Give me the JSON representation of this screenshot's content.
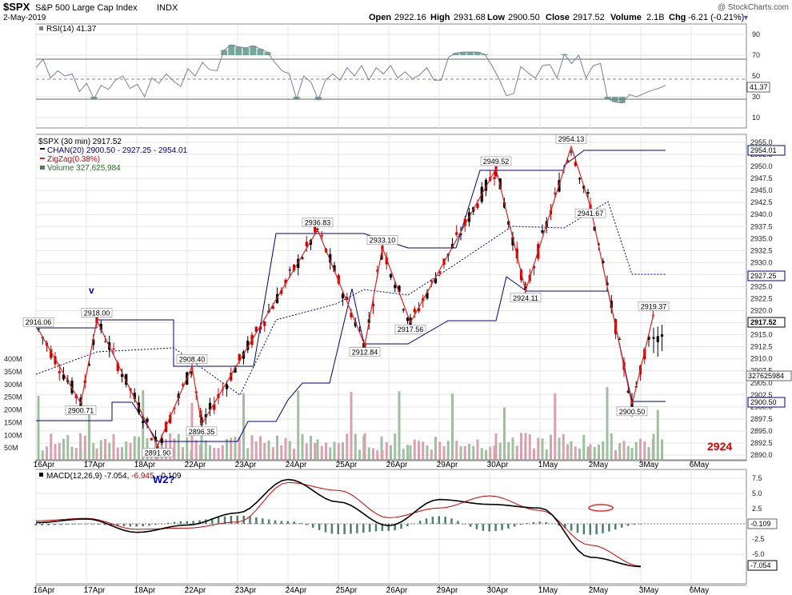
{
  "header": {
    "symbol": "$SPX",
    "name": "S&P 500 Large Cap Index",
    "exchange": "INDX",
    "date": "2-May-2019",
    "watermark": "@ StockCharts.com",
    "open_label": "Open",
    "open": "2922.16",
    "high_label": "High",
    "high": "2931.68",
    "low_label": "Low",
    "low": "2900.50",
    "close_label": "Close",
    "close": "2917.52",
    "volume_label": "Volume",
    "volume": "2.1B",
    "chg_label": "Chg",
    "chg": "-6.21 (-0.21%)"
  },
  "colors": {
    "up": "#000000",
    "down": "#cc0000",
    "channel": "#000080",
    "zigzag": "#dd2222",
    "rsi": "#7a7f9a",
    "rsi_fill": "#5f9688",
    "macd": "#000000",
    "signal": "#cc0000",
    "histogram": "#4f7f6f",
    "vol_up": "#9fbf9f",
    "vol_down": "#d9a0b0",
    "grid": "#e5e5e5"
  },
  "rsi_panel": {
    "legend": "RSI(14) 41.37",
    "current": "41.37",
    "ticks": [
      "90",
      "70",
      "50",
      "30",
      "10"
    ]
  },
  "price_panel": {
    "legend": {
      "title": "$SPX (30 min) 2917.52",
      "chan": "CHAN(20) 2900.50 - 2927.25 - 2954.01",
      "zigzag": "ZigZag(0.38%)",
      "volume": "Volume 327,625,984"
    },
    "price_ticks": [
      "2955.0",
      "2952.5",
      "2950.0",
      "2947.5",
      "2945.0",
      "2942.5",
      "2940.0",
      "2937.5",
      "2935.0",
      "2932.5",
      "2930.0",
      "2927.5",
      "2925.0",
      "2922.5",
      "2920.0",
      "2917.5",
      "2915.0",
      "2912.5",
      "2910.0",
      "2907.5",
      "2905.0",
      "2902.5",
      "2900.0",
      "2897.5",
      "2895.0",
      "2892.5",
      "2890.0"
    ],
    "volume_ticks": [
      "400M",
      "350M",
      "300M",
      "250M",
      "200M",
      "150M",
      "100M",
      "50M"
    ],
    "tags": {
      "upper": "2954.01",
      "middle": "2927.25",
      "lower": "2900.50",
      "last": "2917.52",
      "volume": "327625984"
    },
    "annotation_v": "v",
    "annotation_target": "2924"
  },
  "macd_panel": {
    "legend_prefix": "MACD(12,26,9) -7.054, ",
    "legend_signal": "-6.945",
    "legend_hist": ", -0.109",
    "annotation": "W2?",
    "ticks": [
      "7.5",
      "5.0",
      "2.5",
      "-2.5",
      "-5.0"
    ],
    "tag_hist": "-0.109",
    "tag_macd": "-7.054"
  },
  "x_axis": {
    "labels": [
      "16Apr",
      "17Apr",
      "18Apr",
      "22Apr",
      "23Apr",
      "24Apr",
      "25Apr",
      "26Apr",
      "29Apr",
      "30Apr",
      "1May",
      "2May",
      "3May",
      "6May"
    ]
  },
  "chart_data": {
    "type": "line",
    "title": "$SPX S&P 500 Large Cap Index (30 min)",
    "x": [
      "16Apr",
      "17Apr",
      "18Apr",
      "22Apr",
      "23Apr",
      "24Apr",
      "25Apr",
      "26Apr",
      "29Apr",
      "30Apr",
      "1May",
      "2May",
      "3May"
    ],
    "ohlc_last": {
      "open": 2922.16,
      "high": 2931.68,
      "low": 2900.5,
      "close": 2917.52
    },
    "zigzag_points": [
      {
        "x": "16Apr",
        "y": 2916.06
      },
      {
        "x": "16Apr",
        "y": 2900.71
      },
      {
        "x": "17Apr",
        "y": 2918.0
      },
      {
        "x": "18Apr",
        "y": 2891.9
      },
      {
        "x": "22Apr",
        "y": 2908.4
      },
      {
        "x": "22Apr",
        "y": 2896.35
      },
      {
        "x": "24Apr",
        "y": 2936.83
      },
      {
        "x": "25Apr",
        "y": 2912.84
      },
      {
        "x": "25Apr",
        "y": 2933.1
      },
      {
        "x": "26Apr",
        "y": 2917.56
      },
      {
        "x": "29Apr",
        "y": 2949.52
      },
      {
        "x": "30Apr",
        "y": 2924.11
      },
      {
        "x": "1May",
        "y": 2954.13
      },
      {
        "x": "1May",
        "y": 2941.67
      },
      {
        "x": "2May",
        "y": 2900.5
      },
      {
        "x": "2May",
        "y": 2919.37
      }
    ],
    "price_ylim": [
      2890,
      2956
    ],
    "volume_ylim": [
      0,
      450
    ],
    "volume_units": "M",
    "rsi_ylim": [
      0,
      100
    ],
    "rsi_levels": [
      30,
      50,
      70
    ],
    "rsi_last": 41.37,
    "channel_last": {
      "upper": 2954.01,
      "middle": 2927.25,
      "lower": 2900.5
    },
    "macd_ylim": [
      -8.8,
      8.8
    ],
    "macd_last": {
      "macd": -7.054,
      "signal": -6.945,
      "histogram": -0.109
    },
    "macd_series": [
      {
        "x": "16Apr",
        "macd": 0.2,
        "signal": 0.5
      },
      {
        "x": "17Apr",
        "macd": 0.8,
        "signal": 0.9
      },
      {
        "x": "18Apr",
        "macd": -1.4,
        "signal": -0.9
      },
      {
        "x": "22Apr",
        "macd": -0.2,
        "signal": -0.7
      },
      {
        "x": "23Apr",
        "macd": 1.8,
        "signal": 0.3
      },
      {
        "x": "24Apr",
        "macd": 7.3,
        "signal": 6.8
      },
      {
        "x": "25Apr",
        "macd": 3.6,
        "signal": 5.5
      },
      {
        "x": "26Apr",
        "macd": -0.3,
        "signal": 1.0
      },
      {
        "x": "29Apr",
        "macd": 4.0,
        "signal": 2.6
      },
      {
        "x": "30Apr",
        "macd": 3.2,
        "signal": 4.6
      },
      {
        "x": "1May",
        "macd": 2.6,
        "signal": 2.2
      },
      {
        "x": "2May",
        "macd": -5.5,
        "signal": -3.5
      },
      {
        "x": "3May",
        "macd": -7.05,
        "signal": -6.95
      }
    ],
    "ylabel": "",
    "xlabel": ""
  }
}
